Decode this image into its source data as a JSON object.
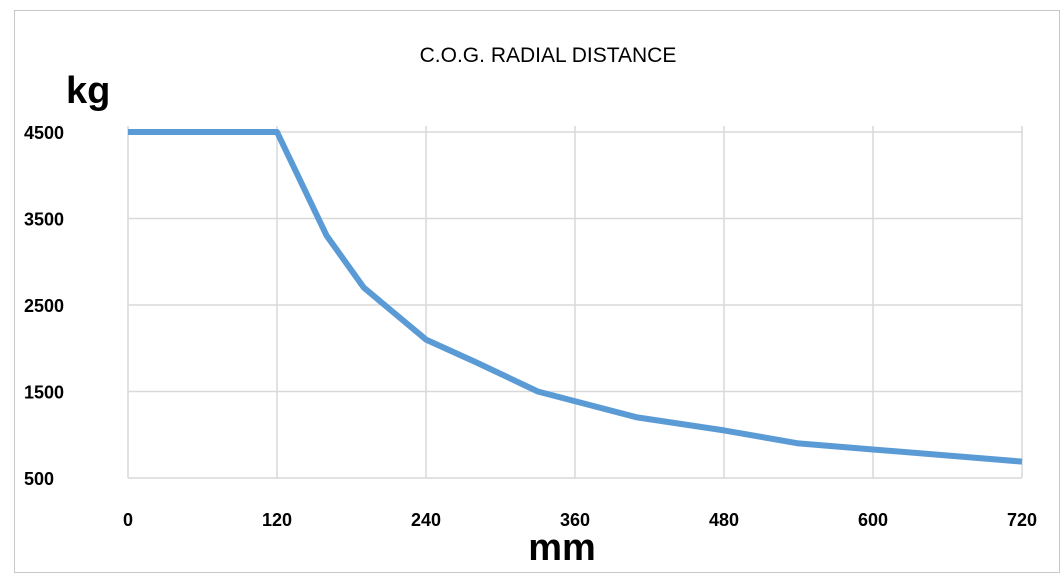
{
  "chart_data": {
    "type": "line",
    "title": "C.O.G. RADIAL DISTANCE",
    "xlabel": "mm",
    "ylabel": "kg",
    "x_ticks": [
      0,
      120,
      240,
      360,
      480,
      600,
      720
    ],
    "y_ticks": [
      500,
      1500,
      2500,
      3500,
      4500
    ],
    "xlim": [
      0,
      720
    ],
    "ylim": [
      500,
      4500
    ],
    "grid": true,
    "series": [
      {
        "color": "#5B9BD5",
        "points": [
          {
            "x": 0,
            "y": 4500
          },
          {
            "x": 120,
            "y": 4500
          },
          {
            "x": 160,
            "y": 3300
          },
          {
            "x": 190,
            "y": 2700
          },
          {
            "x": 240,
            "y": 2100
          },
          {
            "x": 280,
            "y": 1840
          },
          {
            "x": 330,
            "y": 1500
          },
          {
            "x": 410,
            "y": 1200
          },
          {
            "x": 480,
            "y": 1050
          },
          {
            "x": 540,
            "y": 900
          },
          {
            "x": 600,
            "y": 830
          },
          {
            "x": 660,
            "y": 760
          },
          {
            "x": 720,
            "y": 690
          }
        ]
      }
    ]
  }
}
